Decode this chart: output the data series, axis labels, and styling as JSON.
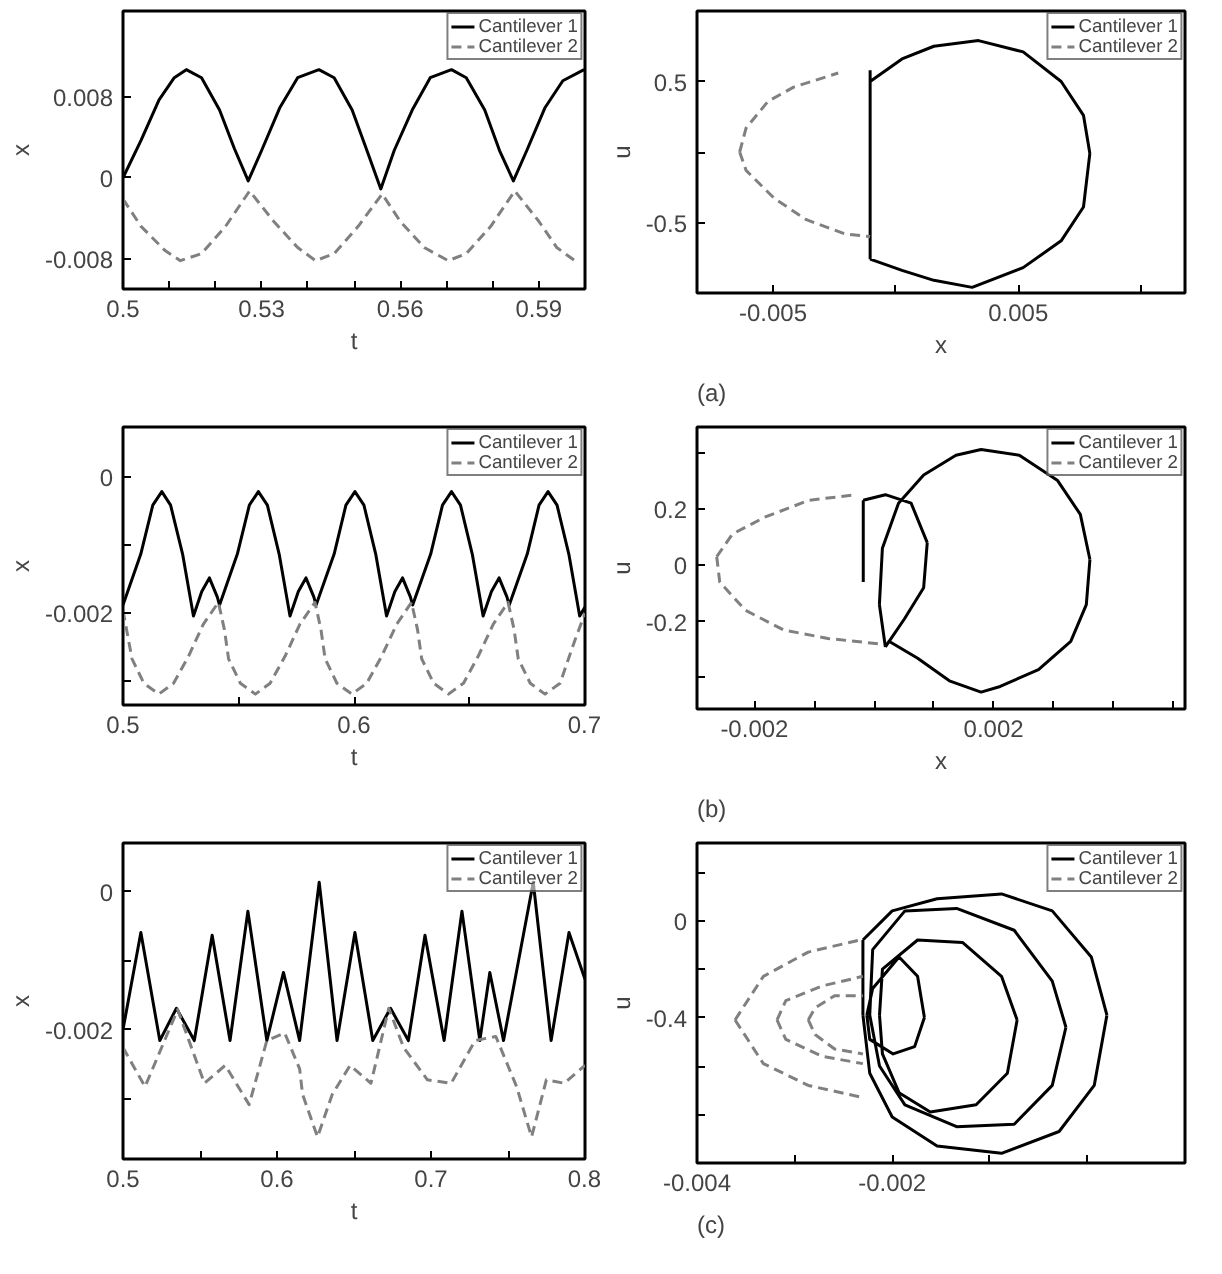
{
  "chart_data": [
    {
      "type": "line",
      "xlabel": "t",
      "ylabel": "x",
      "xlim": [
        0.5,
        0.6
      ],
      "ylim": [
        -0.011,
        0.0165
      ],
      "xticks": [
        0.5,
        {
          "value": 0.51,
          "label": null
        },
        {
          "value": 0.52,
          "label": null
        },
        0.53,
        {
          "value": 0.54,
          "label": null
        },
        {
          "value": 0.55,
          "label": null
        },
        0.56,
        {
          "value": 0.57,
          "label": null
        },
        {
          "value": 0.58,
          "label": null
        },
        0.59,
        {
          "value": 0.6,
          "label": null
        }
      ],
      "yticks": [
        -0.008,
        0,
        0.008
      ],
      "grid": false,
      "legend": "top right",
      "series": [
        {
          "name": "Cantilever 1",
          "color": "#000000",
          "line_style": "solid",
          "x": [
            0.5,
            0.5039,
            0.5078,
            0.5111,
            0.5137,
            0.517,
            0.5209,
            0.5241,
            0.5271,
            0.53,
            0.5339,
            0.5378,
            0.5424,
            0.5457,
            0.5496,
            0.5528,
            0.5558,
            0.5587,
            0.5626,
            0.5665,
            0.5711,
            0.5743,
            0.5783,
            0.5815,
            0.5845,
            0.5874,
            0.5913,
            0.5952,
            0.5998
          ],
          "values": [
            0,
            0.0037,
            0.0077,
            0.0099,
            0.0107,
            0.0099,
            0.0067,
            0.0029,
            -0.0003,
            0.0027,
            0.0069,
            0.0099,
            0.0107,
            0.0099,
            0.0067,
            0.0027,
            -0.0011,
            0.0027,
            0.0067,
            0.0099,
            0.0107,
            0.0099,
            0.0067,
            0.0027,
            -0.0003,
            0.0027,
            0.0069,
            0.0096,
            0.0107
          ]
        },
        {
          "name": "Cantilever 2",
          "color": "#808080",
          "line_style": "dashed",
          "x": [
            0.5,
            0.5039,
            0.5091,
            0.5124,
            0.517,
            0.5222,
            0.5274,
            0.5326,
            0.5378,
            0.5417,
            0.5457,
            0.5509,
            0.5561,
            0.56,
            0.5652,
            0.5704,
            0.5743,
            0.5796,
            0.5848,
            0.59,
            0.5939,
            0.5978
          ],
          "values": [
            -0.0021,
            -0.0048,
            -0.0072,
            -0.0082,
            -0.0075,
            -0.0048,
            -0.0013,
            -0.0043,
            -0.0069,
            -0.0082,
            -0.0075,
            -0.0048,
            -0.0016,
            -0.0043,
            -0.0069,
            -0.0082,
            -0.0075,
            -0.0048,
            -0.0013,
            -0.0043,
            -0.0069,
            -0.0082
          ]
        }
      ]
    },
    {
      "type": "line",
      "xlabel": "x",
      "ylabel": "u",
      "xlim": [
        -0.0081,
        0.0118
      ],
      "ylim": [
        -1,
        1
      ],
      "xticks": [
        -0.005,
        {
          "value": 0,
          "label": null
        },
        0.005,
        {
          "value": 0.01,
          "label": null
        }
      ],
      "yticks": [
        -0.5,
        {
          "value": 0,
          "label": null
        },
        0.5
      ],
      "grid": false,
      "legend": "top right",
      "annotations": [
        "(a)"
      ],
      "series": [
        {
          "name": "Cantilever 1",
          "color": "#000000",
          "line_style": "solid",
          "x": [
            -0.00104,
            0.00026,
            0.00156,
            0.00338,
            0.0052,
            0.00675,
            0.00766,
            0.00792,
            null,
            -0.00104,
            0.00026,
            0.00156,
            0.00312,
            0.0052,
            0.00675,
            0.00766,
            0.00792,
            null,
            -0.00104,
            -0.00104
          ],
          "values": [
            0.5,
            0.66,
            0.75,
            0.79,
            0.71,
            0.5,
            0.26,
            -0.01,
            null,
            -0.76,
            -0.84,
            -0.91,
            -0.96,
            -0.82,
            -0.63,
            -0.39,
            -0.01,
            null,
            -0.76,
            0.58
          ]
        },
        {
          "name": "Cantilever 2",
          "color": "#808080",
          "line_style": "dashed",
          "x": [
            -0.00636,
            -0.0061,
            -0.0052,
            -0.00416,
            -0.00234,
            null,
            -0.00636,
            -0.0061,
            -0.00494,
            -0.00364,
            -0.00208,
            -0.00104
          ],
          "values": [
            0,
            0.17,
            0.36,
            0.46,
            0.56,
            null,
            0,
            -0.13,
            -0.33,
            -0.48,
            -0.58,
            -0.6
          ]
        }
      ]
    },
    {
      "type": "line",
      "xlabel": "t",
      "ylabel": "x",
      "xlim": [
        0.5,
        0.7
      ],
      "ylim": [
        -0.00335,
        0.00074
      ],
      "xticks": [
        0.5,
        {
          "value": 0.55,
          "label": null
        },
        0.6,
        {
          "value": 0.65,
          "label": null
        },
        0.7
      ],
      "yticks": [
        {
          "value": -0.003,
          "label": null
        },
        -0.002,
        {
          "value": -0.001,
          "label": null
        },
        0
      ],
      "grid": false,
      "legend": "top right",
      "series": [
        {
          "name": "Cantilever 1",
          "color": "#000000",
          "line_style": "solid",
          "x": [
            0.5,
            0.5077,
            0.5129,
            0.5168,
            0.5206,
            0.5258,
            0.5305,
            0.5341,
            0.5374,
            0.5408,
            0.5418,
            0.5495,
            0.5547,
            0.5586,
            0.5625,
            0.5676,
            0.5723,
            0.5759,
            0.5792,
            0.5826,
            0.5836,
            0.5914,
            0.5965,
            0.6004,
            0.6043,
            0.6094,
            0.6141,
            0.6177,
            0.621,
            0.6244,
            0.6254,
            0.6332,
            0.6383,
            0.6422,
            0.6461,
            0.6512,
            0.6559,
            0.6595,
            0.6628,
            0.6662,
            0.6672,
            0.675,
            0.6801,
            0.684,
            0.6879,
            0.693,
            0.6977,
            0.7
          ],
          "values": [
            -0.00188,
            -0.00113,
            -0.00041,
            -0.00021,
            -0.00041,
            -0.00113,
            -0.00204,
            -0.00168,
            -0.00148,
            -0.00176,
            -0.00188,
            -0.00113,
            -0.00041,
            -0.00021,
            -0.00041,
            -0.00113,
            -0.00204,
            -0.00168,
            -0.00148,
            -0.00176,
            -0.00188,
            -0.00113,
            -0.00041,
            -0.00021,
            -0.00041,
            -0.00113,
            -0.00204,
            -0.00168,
            -0.00148,
            -0.00176,
            -0.00188,
            -0.00113,
            -0.00041,
            -0.00021,
            -0.00041,
            -0.00113,
            -0.00204,
            -0.00168,
            -0.00148,
            -0.00176,
            -0.00188,
            -0.00113,
            -0.00041,
            -0.00021,
            -0.00041,
            -0.00113,
            -0.00204,
            -0.00191
          ]
        },
        {
          "name": "Cantilever 2",
          "color": "#808080",
          "line_style": "dashed",
          "x": [
            0.5,
            0.5039,
            0.509,
            0.5155,
            0.5219,
            0.5284,
            0.5348,
            0.5413,
            0.5439,
            0.5457,
            0.5508,
            0.5573,
            0.5637,
            0.5702,
            0.5766,
            0.5831,
            0.5857,
            0.5875,
            0.5926,
            0.5991,
            0.6055,
            0.612,
            0.6185,
            0.6249,
            0.6275,
            0.6293,
            0.6345,
            0.6409,
            0.6474,
            0.6538,
            0.6603,
            0.6667,
            0.6693,
            0.6711,
            0.6763,
            0.6827,
            0.6892,
            0.6956,
            0.7
          ],
          "values": [
            -0.00196,
            -0.00267,
            -0.00303,
            -0.00319,
            -0.00303,
            -0.00263,
            -0.00216,
            -0.00184,
            -0.00224,
            -0.00267,
            -0.00303,
            -0.00319,
            -0.00303,
            -0.00263,
            -0.00216,
            -0.00184,
            -0.00224,
            -0.00267,
            -0.00303,
            -0.00319,
            -0.00303,
            -0.00263,
            -0.00216,
            -0.00184,
            -0.00224,
            -0.00267,
            -0.00303,
            -0.00319,
            -0.00303,
            -0.00263,
            -0.00216,
            -0.00184,
            -0.00224,
            -0.00267,
            -0.00303,
            -0.00319,
            -0.00303,
            -0.0024,
            -0.002
          ]
        }
      ]
    },
    {
      "type": "line",
      "xlabel": "x",
      "ylabel": "u",
      "xlim": [
        -0.00296,
        0.0052
      ],
      "ylim": [
        -0.51,
        0.49
      ],
      "xticks": [
        -0.002,
        {
          "value": -0.001,
          "label": null
        },
        {
          "value": 0,
          "label": null
        },
        {
          "value": 0.001,
          "label": null
        },
        0.002,
        {
          "value": 0.003,
          "label": null
        },
        {
          "value": 0.004,
          "label": null
        },
        {
          "value": 0.005,
          "label": null
        }
      ],
      "yticks": [
        {
          "value": -0.4,
          "label": null
        },
        -0.2,
        0,
        0.2,
        {
          "value": 0.4,
          "label": null
        }
      ],
      "grid": false,
      "legend": "top right",
      "annotations": [
        "(b)"
      ],
      "series": [
        {
          "name": "Cantilever 1",
          "color": "#000000",
          "line_style": "solid",
          "x": [
            9e-05,
            0.00014,
            0.00041,
            0.00083,
            0.00137,
            0.00179,
            0.00243,
            0.00307,
            0.00345,
            0.00361,
            null,
            0.00019,
            0.00025,
            0.00073,
            0.00126,
            0.00179,
            0.00211,
            0.00275,
            0.00329,
            0.00355,
            0.00361,
            null,
            9e-05,
            0.00019,
            null,
            -0.00018,
            -0.00018,
            null,
            -0.00018,
            0.00019,
            0.00062,
            0.00089,
            null,
            0.00019,
            0.00051,
            0.00083,
            0.00089
          ],
          "values": [
            -0.14,
            0.06,
            0.22,
            0.32,
            0.39,
            0.41,
            0.39,
            0.3,
            0.18,
            0.02,
            null,
            -0.29,
            -0.27,
            -0.33,
            -0.41,
            -0.45,
            -0.43,
            -0.37,
            -0.27,
            -0.14,
            0.02,
            null,
            -0.14,
            -0.29,
            null,
            -0.06,
            0.23,
            null,
            0.23,
            0.25,
            0.22,
            0.08,
            null,
            -0.29,
            -0.19,
            -0.08,
            0.08
          ]
        },
        {
          "name": "Cantilever 2",
          "color": "#808080",
          "line_style": "dashed",
          "x": [
            -0.00263,
            -0.00237,
            -0.00183,
            -0.00109,
            -0.00029,
            null,
            -0.00263,
            -0.00258,
            -0.00215,
            -0.00151,
            -0.00077,
            0.00014
          ],
          "values": [
            0.03,
            0.11,
            0.17,
            0.23,
            0.25,
            null,
            0.03,
            -0.06,
            -0.16,
            -0.23,
            -0.26,
            -0.28
          ]
        }
      ]
    },
    {
      "type": "line",
      "xlabel": "t",
      "ylabel": "x",
      "xlim": [
        0.5,
        0.8
      ],
      "ylim": [
        -0.00388,
        0.00071
      ],
      "xticks": [
        0.5,
        {
          "value": 0.55,
          "label": null
        },
        0.6,
        {
          "value": 0.65,
          "label": null
        },
        0.7,
        {
          "value": 0.75,
          "label": null
        },
        0.8
      ],
      "yticks": [
        {
          "value": -0.003,
          "label": null
        },
        -0.002,
        {
          "value": -0.001,
          "label": null
        },
        0
      ],
      "grid": false,
      "legend": "top right",
      "series": [
        {
          "name": "Cantilever 1",
          "color": "#000000",
          "line_style": "solid",
          "x": [
            0.5,
            0.5116,
            0.5239,
            0.5347,
            0.5463,
            0.5579,
            0.5695,
            0.5811,
            0.5934,
            0.6042,
            0.6147,
            0.6274,
            0.639,
            0.6506,
            0.6622,
            0.6737,
            0.6853,
            0.6961,
            0.7085,
            0.7201,
            0.7317,
            0.7382,
            0.7471,
            0.7664,
            0.778,
            0.7896,
            0.8
          ],
          "values": [
            -0.002,
            -0.00059,
            -0.00216,
            -0.00169,
            -0.00216,
            -0.00063,
            -0.00216,
            -0.00028,
            -0.00216,
            -0.00117,
            -0.00216,
            0.00014,
            -0.00216,
            -0.00059,
            -0.00216,
            -0.00169,
            -0.00216,
            -0.00063,
            -0.00216,
            -0.00028,
            -0.00216,
            -0.00117,
            -0.00216,
            0.00014,
            -0.00216,
            -0.00059,
            -0.00127
          ]
        },
        {
          "name": "Cantilever 2",
          "color": "#808080",
          "line_style": "dashed",
          "x": [
            0.5,
            0.5143,
            0.5355,
            0.5529,
            0.5664,
            0.5819,
            0.5934,
            0.605,
            0.6147,
            0.6166,
            0.6263,
            0.6359,
            0.6475,
            0.661,
            0.6726,
            0.6822,
            0.6977,
            0.7131,
            0.7286,
            0.7421,
            0.7556,
            0.7653,
            0.7749,
            0.7865,
            0.8
          ],
          "values": [
            -0.00226,
            -0.00283,
            -0.00171,
            -0.00278,
            -0.00252,
            -0.00309,
            -0.00216,
            -0.00205,
            -0.00257,
            -0.00294,
            -0.00356,
            -0.00294,
            -0.00252,
            -0.00278,
            -0.00169,
            -0.00226,
            -0.00273,
            -0.00278,
            -0.00216,
            -0.0021,
            -0.00283,
            -0.00356,
            -0.00273,
            -0.00278,
            -0.00252
          ]
        }
      ]
    },
    {
      "type": "line",
      "ylabel": "u",
      "xlim": [
        -0.004,
        0.001
      ],
      "ylim": [
        -1.0,
        0.32
      ],
      "xticks": [
        -0.004,
        {
          "value": -0.003,
          "label": null
        },
        -0.002,
        {
          "value": -0.001,
          "label": null
        },
        {
          "value": 0,
          "label": null
        }
      ],
      "yticks": [
        {
          "value": -0.8,
          "label": null
        },
        {
          "value": -0.6,
          "label": null
        },
        -0.4,
        {
          "value": -0.2,
          "label": null
        },
        0,
        {
          "value": 0.2,
          "label": null
        }
      ],
      "grid": false,
      "legend": "top right",
      "annotations": [
        "(c)"
      ],
      "series": [
        {
          "name": "Cantilever 1",
          "color": "#000000",
          "line_style": "solid",
          "x": [
            -0.0023,
            -0.002,
            -0.00154,
            -0.00088,
            -0.00036,
            4e-05,
            0.0002,
            null,
            -0.0023,
            -0.00223,
            -0.002,
            -0.00154,
            -0.00088,
            -0.00029,
            7e-05,
            0.0002,
            null,
            -0.0023,
            -0.0023,
            null,
            -0.00223,
            -0.0022,
            -0.00187,
            -0.00134,
            -0.00075,
            -0.00036,
            -0.00022,
            null,
            -0.00223,
            -0.00213,
            -0.00187,
            -0.00134,
            -0.00075,
            -0.00036,
            -0.00022,
            null,
            -0.00213,
            -0.0021,
            -0.00174,
            -0.00128,
            -0.00088,
            -0.00072,
            null,
            -0.00213,
            -0.0021,
            -0.00193,
            -0.00161,
            -0.00114,
            -0.00082,
            -0.00072,
            null,
            -0.00226,
            -0.0022,
            -0.00193,
            -0.00174,
            -0.00167,
            null,
            -0.00226,
            -0.00223,
            -0.00199,
            -0.00177,
            -0.00167
          ],
          "values": [
            -0.08,
            0.04,
            0.09,
            0.11,
            0.04,
            -0.15,
            -0.39,
            null,
            -0.39,
            -0.63,
            -0.81,
            -0.93,
            -0.96,
            -0.87,
            -0.68,
            -0.39,
            null,
            -0.39,
            -0.08,
            null,
            -0.39,
            -0.12,
            0.04,
            0.05,
            -0.04,
            -0.25,
            -0.44,
            null,
            -0.39,
            -0.6,
            -0.76,
            -0.85,
            -0.84,
            -0.68,
            -0.44,
            null,
            -0.39,
            -0.2,
            -0.08,
            -0.09,
            -0.23,
            -0.41,
            null,
            -0.39,
            -0.55,
            -0.71,
            -0.79,
            -0.76,
            -0.63,
            -0.41,
            null,
            -0.39,
            -0.28,
            -0.15,
            -0.23,
            -0.4,
            null,
            -0.39,
            -0.49,
            -0.55,
            -0.52,
            -0.4
          ]
        },
        {
          "name": "Cantilever 2",
          "color": "#808080",
          "line_style": "dashed",
          "x": [
            -0.00361,
            -0.00332,
            -0.00286,
            -0.00233,
            null,
            -0.00361,
            -0.00332,
            -0.00286,
            -0.0023,
            null,
            -0.00318,
            -0.00309,
            -0.00272,
            -0.0023,
            null,
            -0.00318,
            -0.00309,
            -0.00272,
            -0.0023,
            null,
            -0.00286,
            -0.00279,
            -0.00259,
            -0.0023,
            null,
            -0.00286,
            -0.00279,
            -0.00259,
            -0.0023
          ],
          "values": [
            -0.41,
            -0.23,
            -0.13,
            -0.08,
            null,
            -0.41,
            -0.59,
            -0.68,
            -0.73,
            null,
            -0.41,
            -0.33,
            -0.27,
            -0.23,
            null,
            -0.41,
            -0.49,
            -0.56,
            -0.59,
            null,
            -0.41,
            -0.36,
            -0.31,
            -0.31,
            null,
            -0.41,
            -0.47,
            -0.53,
            -0.55
          ]
        }
      ]
    }
  ]
}
